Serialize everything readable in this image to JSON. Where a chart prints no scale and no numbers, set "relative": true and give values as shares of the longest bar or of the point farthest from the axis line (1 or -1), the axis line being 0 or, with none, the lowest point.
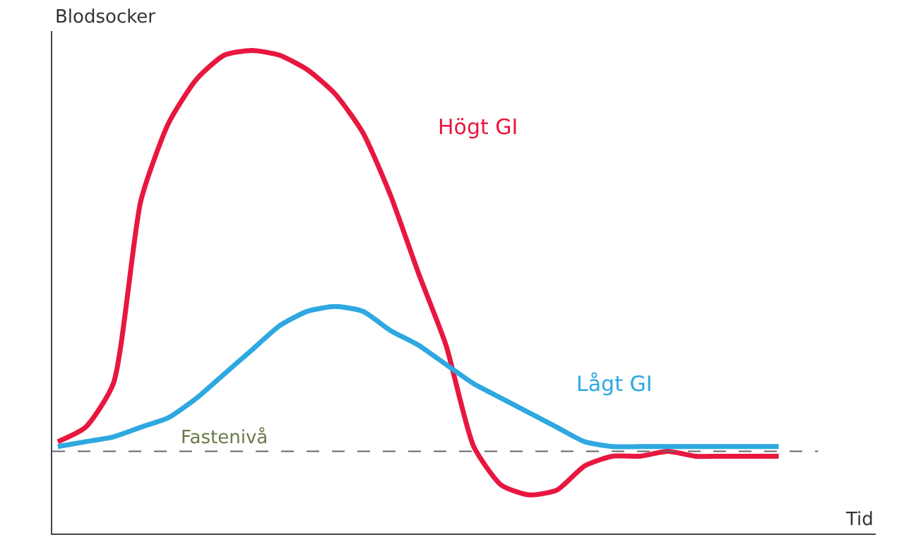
{
  "chart_data": {
    "type": "line",
    "relative": true,
    "xlabel": "Tid",
    "ylabel": "Blodsocker",
    "categories": [
      null,
      null,
      null,
      null,
      null,
      null,
      null,
      null,
      null,
      null,
      null,
      null,
      null,
      null,
      null,
      null,
      null,
      null,
      null,
      null,
      null,
      null,
      null,
      null,
      null,
      null,
      null
    ],
    "series": [
      {
        "name": "Högt GI",
        "color": "#e8173f",
        "values": [
          0.19,
          0.22,
          0.31,
          0.69,
          0.85,
          0.94,
          0.99,
          1.0,
          0.99,
          0.96,
          0.91,
          0.83,
          0.7,
          0.54,
          0.39,
          0.18,
          0.1,
          0.08,
          0.09,
          0.14,
          0.16,
          0.16,
          0.17,
          0.16,
          0.16,
          0.16,
          0.16
        ]
      },
      {
        "name": "Lågt GI",
        "color": "#2ea8e0",
        "values": [
          0.18,
          0.19,
          0.2,
          0.22,
          0.24,
          0.28,
          0.33,
          0.38,
          0.43,
          0.46,
          0.47,
          0.46,
          0.42,
          0.39,
          0.35,
          0.31,
          0.28,
          0.25,
          0.22,
          0.19,
          0.18,
          0.18,
          0.18,
          0.18,
          0.18,
          0.18,
          0.18
        ]
      }
    ],
    "ref_lines": [
      {
        "axis": "y",
        "value": 0.17,
        "label": "Fastenivå",
        "color": "#666666",
        "line_style": "dashed"
      }
    ],
    "legend": false,
    "marker": "none",
    "line_style": "solid"
  }
}
